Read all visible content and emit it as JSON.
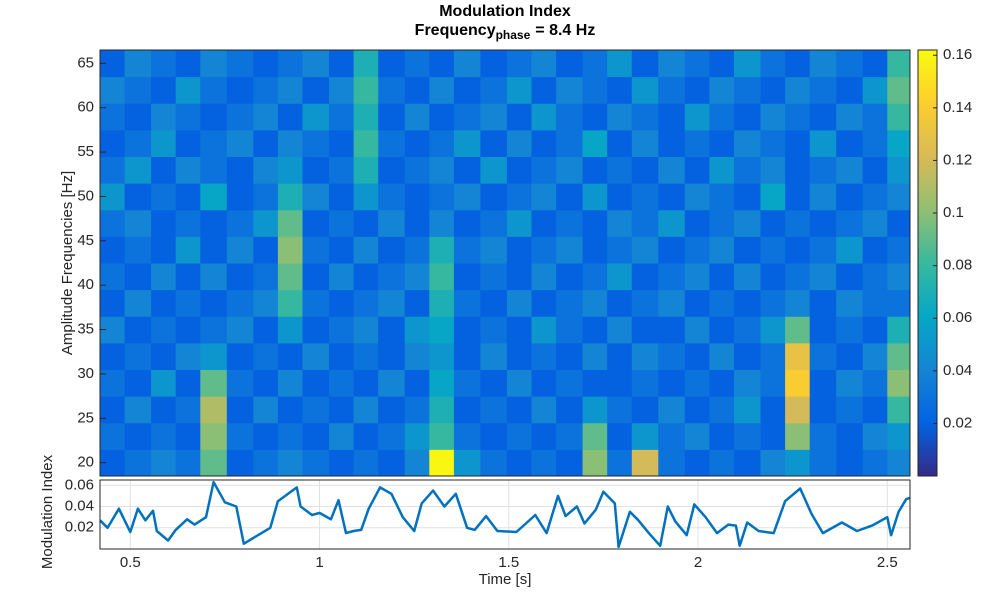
{
  "chart_data": [
    {
      "type": "heatmap",
      "title": "Modulation Index",
      "subtitle": [
        "Frequency",
        "phase",
        "= 8.4 Hz"
      ],
      "ylabel": "Amplitude Frequencies [Hz]",
      "x": [
        0.45,
        0.52,
        0.59,
        0.65,
        0.72,
        0.79,
        0.86,
        0.92,
        0.99,
        1.06,
        1.12,
        1.19,
        1.26,
        1.32,
        1.39,
        1.46,
        1.53,
        1.59,
        1.66,
        1.73,
        1.79,
        1.86,
        1.93,
        2.0,
        2.06,
        2.13,
        2.2,
        2.26,
        2.33,
        2.4,
        2.47,
        2.53
      ],
      "y": [
        20,
        23,
        26,
        29,
        32,
        35,
        38,
        41,
        44,
        47,
        50,
        53,
        56,
        59,
        62,
        65
      ],
      "z": [
        [
          0.02,
          0.03,
          0.04,
          0.03,
          0.09,
          0.02,
          0.03,
          0.04,
          0.03,
          0.02,
          0.03,
          0.02,
          0.04,
          0.16,
          0.05,
          0.03,
          0.02,
          0.03,
          0.02,
          0.1,
          0.03,
          0.12,
          0.03,
          0.02,
          0.03,
          0.02,
          0.04,
          0.05,
          0.03,
          0.02,
          0.03,
          0.04
        ],
        [
          0.03,
          0.02,
          0.03,
          0.02,
          0.1,
          0.03,
          0.02,
          0.03,
          0.02,
          0.04,
          0.02,
          0.03,
          0.05,
          0.08,
          0.03,
          0.02,
          0.03,
          0.02,
          0.03,
          0.09,
          0.02,
          0.05,
          0.03,
          0.04,
          0.02,
          0.03,
          0.02,
          0.1,
          0.03,
          0.02,
          0.04,
          0.05
        ],
        [
          0.02,
          0.04,
          0.02,
          0.03,
          0.11,
          0.02,
          0.04,
          0.02,
          0.03,
          0.02,
          0.04,
          0.02,
          0.03,
          0.07,
          0.02,
          0.03,
          0.02,
          0.04,
          0.02,
          0.05,
          0.03,
          0.02,
          0.04,
          0.02,
          0.03,
          0.05,
          0.02,
          0.12,
          0.02,
          0.03,
          0.02,
          0.08
        ],
        [
          0.03,
          0.02,
          0.05,
          0.02,
          0.09,
          0.03,
          0.02,
          0.04,
          0.02,
          0.03,
          0.02,
          0.04,
          0.02,
          0.06,
          0.03,
          0.02,
          0.04,
          0.02,
          0.03,
          0.02,
          0.02,
          0.03,
          0.02,
          0.03,
          0.02,
          0.04,
          0.03,
          0.14,
          0.02,
          0.04,
          0.03,
          0.1
        ],
        [
          0.02,
          0.03,
          0.02,
          0.04,
          0.05,
          0.02,
          0.03,
          0.02,
          0.04,
          0.02,
          0.03,
          0.02,
          0.04,
          0.05,
          0.02,
          0.04,
          0.02,
          0.03,
          0.02,
          0.04,
          0.02,
          0.04,
          0.03,
          0.02,
          0.04,
          0.02,
          0.03,
          0.13,
          0.03,
          0.02,
          0.04,
          0.09
        ],
        [
          0.04,
          0.02,
          0.03,
          0.02,
          0.03,
          0.04,
          0.02,
          0.05,
          0.02,
          0.03,
          0.04,
          0.02,
          0.05,
          0.06,
          0.02,
          0.03,
          0.02,
          0.05,
          0.03,
          0.02,
          0.04,
          0.02,
          0.02,
          0.04,
          0.02,
          0.03,
          0.05,
          0.09,
          0.02,
          0.03,
          0.02,
          0.07
        ],
        [
          0.02,
          0.04,
          0.02,
          0.03,
          0.02,
          0.03,
          0.04,
          0.08,
          0.03,
          0.02,
          0.03,
          0.04,
          0.02,
          0.07,
          0.03,
          0.02,
          0.04,
          0.02,
          0.03,
          0.04,
          0.02,
          0.03,
          0.04,
          0.02,
          0.03,
          0.02,
          0.03,
          0.04,
          0.02,
          0.04,
          0.03,
          0.03
        ],
        [
          0.03,
          0.02,
          0.04,
          0.02,
          0.04,
          0.02,
          0.03,
          0.09,
          0.02,
          0.04,
          0.02,
          0.03,
          0.04,
          0.08,
          0.02,
          0.03,
          0.02,
          0.04,
          0.02,
          0.03,
          0.05,
          0.02,
          0.03,
          0.04,
          0.02,
          0.04,
          0.02,
          0.03,
          0.04,
          0.02,
          0.03,
          0.04
        ],
        [
          0.02,
          0.03,
          0.02,
          0.05,
          0.02,
          0.04,
          0.02,
          0.1,
          0.03,
          0.02,
          0.04,
          0.02,
          0.03,
          0.07,
          0.03,
          0.04,
          0.02,
          0.03,
          0.04,
          0.02,
          0.03,
          0.04,
          0.02,
          0.03,
          0.04,
          0.02,
          0.03,
          0.02,
          0.03,
          0.05,
          0.02,
          0.03
        ],
        [
          0.03,
          0.04,
          0.02,
          0.03,
          0.02,
          0.03,
          0.05,
          0.09,
          0.02,
          0.03,
          0.02,
          0.04,
          0.02,
          0.04,
          0.02,
          0.03,
          0.05,
          0.02,
          0.03,
          0.02,
          0.04,
          0.03,
          0.05,
          0.02,
          0.03,
          0.04,
          0.02,
          0.03,
          0.02,
          0.03,
          0.04,
          0.02
        ],
        [
          0.05,
          0.02,
          0.03,
          0.02,
          0.06,
          0.02,
          0.03,
          0.07,
          0.04,
          0.02,
          0.05,
          0.03,
          0.02,
          0.03,
          0.04,
          0.02,
          0.03,
          0.04,
          0.02,
          0.05,
          0.02,
          0.03,
          0.02,
          0.04,
          0.03,
          0.02,
          0.06,
          0.02,
          0.04,
          0.02,
          0.03,
          0.04
        ],
        [
          0.03,
          0.05,
          0.02,
          0.04,
          0.03,
          0.02,
          0.04,
          0.05,
          0.02,
          0.03,
          0.07,
          0.02,
          0.03,
          0.04,
          0.02,
          0.05,
          0.02,
          0.03,
          0.04,
          0.02,
          0.03,
          0.02,
          0.04,
          0.02,
          0.05,
          0.03,
          0.04,
          0.02,
          0.03,
          0.04,
          0.02,
          0.05
        ],
        [
          0.02,
          0.03,
          0.05,
          0.02,
          0.03,
          0.04,
          0.02,
          0.04,
          0.03,
          0.02,
          0.08,
          0.03,
          0.02,
          0.03,
          0.05,
          0.02,
          0.04,
          0.02,
          0.03,
          0.06,
          0.02,
          0.04,
          0.02,
          0.03,
          0.02,
          0.04,
          0.03,
          0.02,
          0.05,
          0.02,
          0.03,
          0.06
        ],
        [
          0.03,
          0.02,
          0.04,
          0.03,
          0.02,
          0.03,
          0.04,
          0.02,
          0.05,
          0.03,
          0.07,
          0.02,
          0.04,
          0.02,
          0.03,
          0.04,
          0.02,
          0.05,
          0.03,
          0.02,
          0.04,
          0.03,
          0.02,
          0.05,
          0.03,
          0.02,
          0.04,
          0.03,
          0.02,
          0.04,
          0.03,
          0.08
        ],
        [
          0.04,
          0.03,
          0.02,
          0.05,
          0.03,
          0.02,
          0.03,
          0.04,
          0.02,
          0.04,
          0.08,
          0.03,
          0.02,
          0.04,
          0.02,
          0.03,
          0.05,
          0.02,
          0.04,
          0.03,
          0.02,
          0.05,
          0.03,
          0.02,
          0.04,
          0.03,
          0.02,
          0.04,
          0.03,
          0.02,
          0.05,
          0.09
        ],
        [
          0.02,
          0.04,
          0.03,
          0.02,
          0.04,
          0.03,
          0.02,
          0.03,
          0.04,
          0.02,
          0.07,
          0.02,
          0.03,
          0.02,
          0.04,
          0.02,
          0.03,
          0.04,
          0.02,
          0.03,
          0.05,
          0.02,
          0.04,
          0.03,
          0.02,
          0.05,
          0.03,
          0.02,
          0.04,
          0.03,
          0.02,
          0.08
        ]
      ],
      "xlim": [
        0.42,
        2.56
      ],
      "ylim": [
        18.5,
        66.5
      ],
      "yticks": [
        20,
        25,
        30,
        35,
        40,
        45,
        50,
        55,
        60,
        65
      ],
      "clim": [
        0,
        0.162
      ],
      "cticks": [
        0.02,
        0.04,
        0.06,
        0.08,
        0.1,
        0.12,
        0.14,
        0.16
      ],
      "colormap": [
        "#352a87",
        "#0363e1",
        "#1485d4",
        "#06a7c6",
        "#38b99e",
        "#92bf73",
        "#d9ba56",
        "#fcce2e",
        "#f9fb0e"
      ]
    },
    {
      "type": "line",
      "xlabel": "Time [s]",
      "ylabel": "Modulation Index",
      "x": [
        0.42,
        0.44,
        0.47,
        0.5,
        0.52,
        0.54,
        0.56,
        0.57,
        0.6,
        0.62,
        0.65,
        0.67,
        0.7,
        0.72,
        0.75,
        0.78,
        0.8,
        0.87,
        0.89,
        0.94,
        0.95,
        0.98,
        1.0,
        1.03,
        1.05,
        1.07,
        1.09,
        1.11,
        1.13,
        1.16,
        1.19,
        1.22,
        1.25,
        1.27,
        1.3,
        1.33,
        1.36,
        1.39,
        1.41,
        1.44,
        1.47,
        1.52,
        1.57,
        1.6,
        1.63,
        1.65,
        1.68,
        1.7,
        1.73,
        1.75,
        1.78,
        1.79,
        1.82,
        1.84,
        1.87,
        1.9,
        1.92,
        1.94,
        1.97,
        1.99,
        2.02,
        2.05,
        2.08,
        2.1,
        2.11,
        2.13,
        2.16,
        2.2,
        2.23,
        2.27,
        2.3,
        2.33,
        2.38,
        2.42,
        2.46,
        2.5,
        2.51,
        2.53,
        2.55,
        2.56
      ],
      "values": [
        0.027,
        0.02,
        0.038,
        0.016,
        0.038,
        0.027,
        0.036,
        0.017,
        0.008,
        0.018,
        0.028,
        0.023,
        0.03,
        0.063,
        0.044,
        0.04,
        0.005,
        0.02,
        0.045,
        0.058,
        0.04,
        0.032,
        0.034,
        0.028,
        0.046,
        0.015,
        0.017,
        0.018,
        0.038,
        0.058,
        0.052,
        0.03,
        0.017,
        0.043,
        0.055,
        0.04,
        0.052,
        0.02,
        0.018,
        0.031,
        0.017,
        0.016,
        0.032,
        0.015,
        0.05,
        0.031,
        0.04,
        0.024,
        0.037,
        0.054,
        0.043,
        0.002,
        0.035,
        0.028,
        0.015,
        0.003,
        0.04,
        0.026,
        0.013,
        0.042,
        0.03,
        0.015,
        0.023,
        0.022,
        0.003,
        0.025,
        0.017,
        0.015,
        0.045,
        0.057,
        0.033,
        0.015,
        0.025,
        0.017,
        0.022,
        0.03,
        0.013,
        0.035,
        0.047,
        0.048
      ],
      "color": "#0072bd",
      "xlim": [
        0.42,
        2.56
      ],
      "ylim": [
        0,
        0.065
      ],
      "xticks": [
        0.5,
        1,
        1.5,
        2,
        2.5
      ],
      "yticks": [
        0.02,
        0.04,
        0.06
      ],
      "grid": true
    }
  ]
}
